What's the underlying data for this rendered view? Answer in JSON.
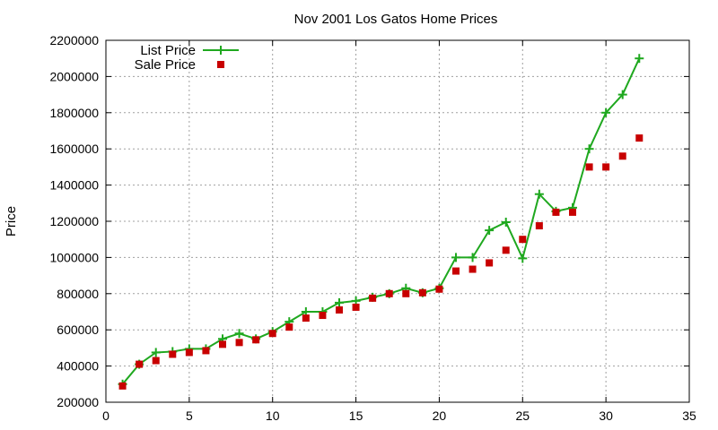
{
  "chart_data": {
    "type": "line",
    "title": "Nov 2001 Los Gatos Home Prices",
    "xlabel": "",
    "ylabel": "Price",
    "xlim": [
      0,
      35
    ],
    "ylim": [
      200000,
      2200000
    ],
    "xticks": [
      0,
      5,
      10,
      15,
      20,
      25,
      30,
      35
    ],
    "yticks": [
      200000,
      400000,
      600000,
      800000,
      1000000,
      1200000,
      1400000,
      1600000,
      1800000,
      2000000,
      2200000
    ],
    "grid": true,
    "legend_position": "top-left",
    "series": [
      {
        "name": "List Price",
        "style": "line-with-plus",
        "color": "#1fa81f",
        "x": [
          1,
          2,
          3,
          4,
          5,
          6,
          7,
          8,
          9,
          10,
          11,
          12,
          13,
          14,
          15,
          16,
          17,
          18,
          19,
          20,
          21,
          22,
          23,
          24,
          25,
          26,
          27,
          28,
          29,
          30,
          31,
          32
        ],
        "y": [
          300000,
          410000,
          475000,
          480000,
          495000,
          495000,
          550000,
          580000,
          550000,
          590000,
          645000,
          700000,
          700000,
          750000,
          760000,
          780000,
          800000,
          830000,
          805000,
          830000,
          1000000,
          1000000,
          1150000,
          1195000,
          995000,
          1350000,
          1255000,
          1275000,
          1600000,
          1800000,
          1900000,
          2100000
        ]
      },
      {
        "name": "Sale Price",
        "style": "square-markers",
        "color": "#c80000",
        "x": [
          1,
          2,
          3,
          4,
          5,
          6,
          7,
          8,
          9,
          10,
          11,
          12,
          13,
          14,
          15,
          16,
          17,
          18,
          19,
          20,
          21,
          22,
          23,
          24,
          25,
          26,
          27,
          28,
          29,
          30,
          31,
          32
        ],
        "y": [
          290000,
          410000,
          430000,
          465000,
          475000,
          485000,
          520000,
          530000,
          545000,
          580000,
          615000,
          665000,
          680000,
          710000,
          725000,
          775000,
          800000,
          800000,
          805000,
          825000,
          925000,
          935000,
          970000,
          1040000,
          1100000,
          1175000,
          1250000,
          1250000,
          1500000,
          1500000,
          1560000,
          1660000
        ]
      }
    ]
  }
}
